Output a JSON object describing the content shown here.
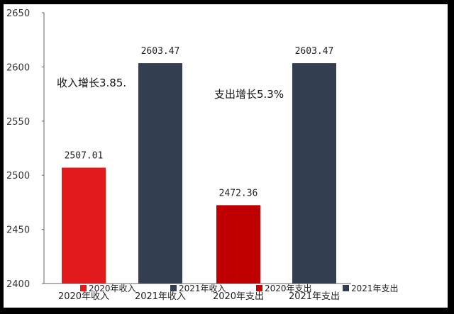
{
  "chart_data": {
    "type": "bar",
    "categories": [
      "2020年收入",
      "2021年收入",
      "2020年支出",
      "2021年支出"
    ],
    "values": [
      2507.01,
      2603.47,
      2472.36,
      2603.47
    ],
    "data_labels": [
      "2507.01",
      "2603.47",
      "2472.36",
      "2603.47"
    ],
    "colors": [
      "#e31a1c",
      "#333f50",
      "#c00000",
      "#333f50"
    ],
    "ylim": [
      2400,
      2650
    ],
    "yticks": [
      2400,
      2450,
      2500,
      2550,
      2600,
      2650
    ],
    "grid": false,
    "legend_position": "bottom",
    "legend": [
      {
        "label": "2020年收入",
        "color": "#e31a1c"
      },
      {
        "label": "2021年收入",
        "color": "#333f50"
      },
      {
        "label": "2020年支出",
        "color": "#c00000"
      },
      {
        "label": "2021年支出",
        "color": "#333f50"
      }
    ],
    "annotations": [
      "收入增长3.85.",
      "支出增长5.3%"
    ]
  }
}
